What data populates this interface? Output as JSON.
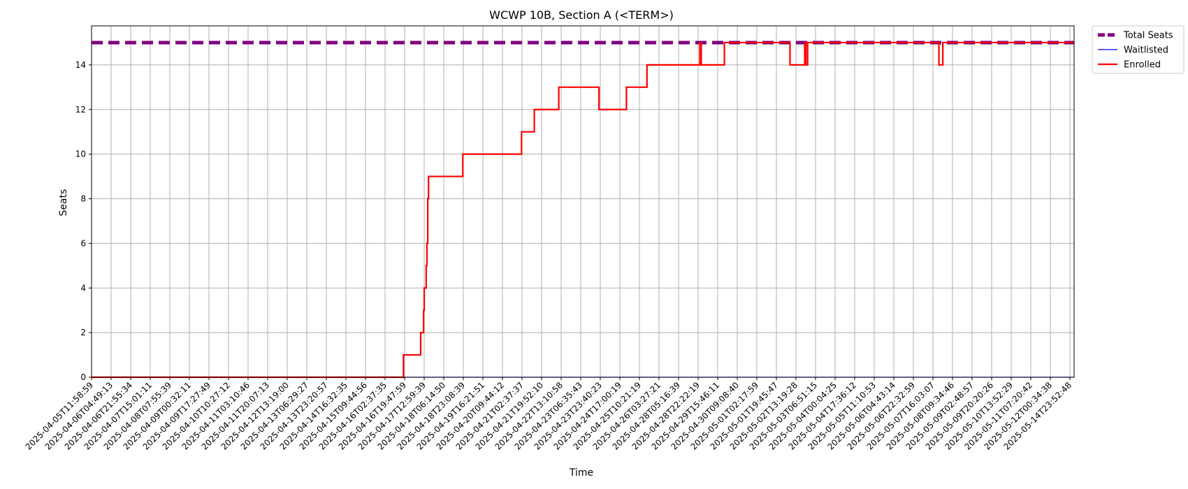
{
  "chart_data": {
    "type": "line",
    "title": "WCWP 10B, Section A (<TERM>)",
    "xlabel": "Time",
    "ylabel": "Seats",
    "ylim": [
      0,
      15.75
    ],
    "yticks": [
      0,
      2,
      4,
      6,
      8,
      10,
      12,
      14
    ],
    "grid": true,
    "legend_position": "outside-top-right",
    "x_ticks": [
      "2025-04-05T11:58:59",
      "2025-04-06T04:49:13",
      "2025-04-06T21:55:34",
      "2025-04-07T15:01:11",
      "2025-04-08T07:55:39",
      "2025-04-09T00:32:11",
      "2025-04-09T17:27:49",
      "2025-04-10T10:27:12",
      "2025-04-11T03:10:46",
      "2025-04-11T20:07:13",
      "2025-04-12T13:19:00",
      "2025-04-13T06:29:27",
      "2025-04-13T23:20:57",
      "2025-04-14T16:32:35",
      "2025-04-15T09:44:56",
      "2025-04-16T02:37:35",
      "2025-04-16T19:47:59",
      "2025-04-17T12:59:39",
      "2025-04-18T06:14:50",
      "2025-04-18T23:08:39",
      "2025-04-19T16:21:51",
      "2025-04-20T09:44:12",
      "2025-04-21T02:37:37",
      "2025-04-21T19:52:10",
      "2025-04-22T13:10:58",
      "2025-04-23T06:35:43",
      "2025-04-23T23:40:23",
      "2025-04-24T17:00:19",
      "2025-04-25T10:21:19",
      "2025-04-26T03:27:21",
      "2025-04-28T05:16:39",
      "2025-04-28T22:22:19",
      "2025-04-29T15:46:11",
      "2025-04-30T09:08:40",
      "2025-05-01T02:17:59",
      "2025-05-01T19:45:47",
      "2025-05-02T13:19:28",
      "2025-05-03T06:51:15",
      "2025-05-04T00:04:25",
      "2025-05-04T17:36:12",
      "2025-05-05T11:10:53",
      "2025-05-06T04:43:14",
      "2025-05-06T22:32:59",
      "2025-05-07T16:03:07",
      "2025-05-08T09:34:46",
      "2025-05-09T02:48:57",
      "2025-05-09T20:20:26",
      "2025-05-10T13:52:29",
      "2025-05-11T07:20:42",
      "2025-05-12T00:34:38",
      "2025-05-14T23:52:48"
    ],
    "series": [
      {
        "name": "Total Seats",
        "color": "#800080",
        "style": "dashed",
        "steps": [
          [
            0,
            15
          ],
          [
            50.15,
            15
          ]
        ]
      },
      {
        "name": "Waitlisted",
        "color": "#0000ff",
        "style": "solid",
        "steps": [
          [
            0,
            0
          ],
          [
            50.15,
            0
          ]
        ]
      },
      {
        "name": "Enrolled",
        "color": "#ff0000",
        "style": "solid",
        "steps": [
          [
            0,
            0
          ],
          [
            15.92,
            1
          ],
          [
            16.8,
            2
          ],
          [
            16.95,
            3
          ],
          [
            16.98,
            4
          ],
          [
            17.08,
            5
          ],
          [
            17.12,
            6
          ],
          [
            17.16,
            8
          ],
          [
            17.2,
            9
          ],
          [
            18.95,
            10
          ],
          [
            21.95,
            11
          ],
          [
            22.6,
            12
          ],
          [
            23.85,
            13
          ],
          [
            25.9,
            12
          ],
          [
            27.3,
            13
          ],
          [
            28.35,
            14
          ],
          [
            31.05,
            15
          ],
          [
            31.12,
            14
          ],
          [
            32.3,
            15
          ],
          [
            35.65,
            14
          ],
          [
            36.4,
            15
          ],
          [
            36.46,
            14
          ],
          [
            36.55,
            15
          ],
          [
            43.25,
            14
          ],
          [
            43.45,
            15
          ],
          [
            50.15,
            15
          ]
        ]
      }
    ]
  }
}
